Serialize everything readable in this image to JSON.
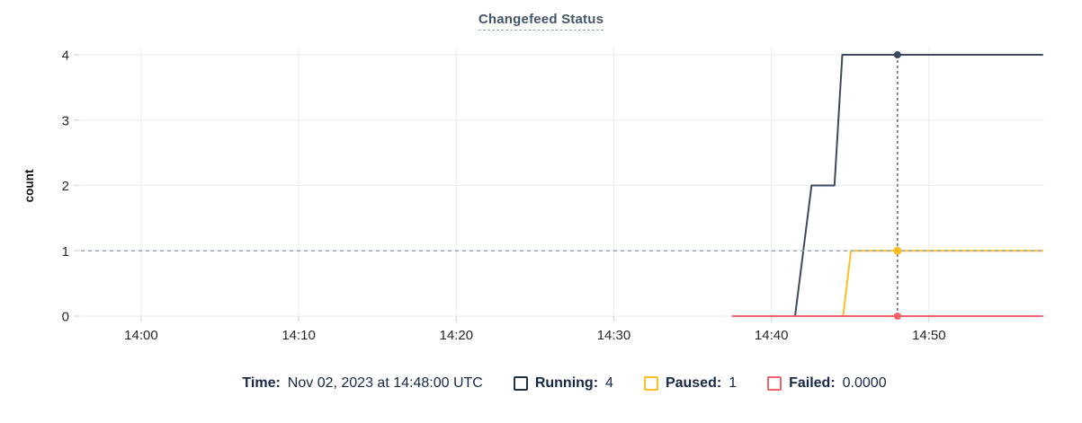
{
  "chart_data": {
    "type": "line",
    "title": "Changefeed Status",
    "ylabel": "count",
    "x_axis": {
      "tick_labels": [
        "14:00",
        "14:10",
        "14:20",
        "14:30",
        "14:40",
        "14:50"
      ],
      "tick_minutes": [
        0,
        10,
        20,
        30,
        40,
        50
      ],
      "domain_minutes": [
        -3.82,
        57.2
      ],
      "unit": "minutes after 14:00, times shown as HH:MM"
    },
    "y_axis": {
      "ticks": [
        0,
        1,
        2,
        3,
        4
      ],
      "domain": [
        0,
        4
      ]
    },
    "grid": true,
    "legend_position": "bottom",
    "series": [
      {
        "name": "Running",
        "color": "#3a4a61",
        "points": [
          [
            37.55,
            0
          ],
          [
            41.5,
            0
          ],
          [
            42.55,
            2
          ],
          [
            44.0,
            2
          ],
          [
            44.5,
            4
          ],
          [
            57.2,
            4
          ]
        ]
      },
      {
        "name": "Paused",
        "color": "#ffbd24",
        "points": [
          [
            37.55,
            0
          ],
          [
            44.55,
            0
          ],
          [
            45.05,
            1
          ],
          [
            57.2,
            1
          ]
        ]
      },
      {
        "name": "Failed",
        "color": "#f2606a",
        "points": [
          [
            37.55,
            0
          ],
          [
            57.2,
            0
          ]
        ]
      }
    ],
    "crosshair": {
      "time": "14:48:00",
      "time_minutes": 48,
      "hline_value": 1,
      "vline_color": "#4a6072",
      "hline_color": "#98a5b0",
      "dots": [
        {
          "series": "Running",
          "value": 4
        },
        {
          "series": "Paused",
          "value": 1
        },
        {
          "series": "Failed",
          "value": 0
        }
      ]
    }
  },
  "legend": {
    "time_label": "Time:",
    "time_value": "Nov 02, 2023 at 14:48:00 UTC",
    "items": [
      {
        "name": "Running",
        "label": "Running:",
        "value": "4",
        "swatch_color": "#1c3150"
      },
      {
        "name": "Paused",
        "label": "Paused:",
        "value": "1",
        "swatch_color": "#ffbd24"
      },
      {
        "name": "Failed",
        "label": "Failed:",
        "value": "0.0000",
        "swatch_color": "#f2606a"
      }
    ]
  },
  "colors": {
    "title": "#44546b",
    "legend_text": "#152849",
    "axis_text": "#24272e",
    "grid": "#e9ebee",
    "tick_mark": "#d9dcdf",
    "background": "#ffffff"
  }
}
